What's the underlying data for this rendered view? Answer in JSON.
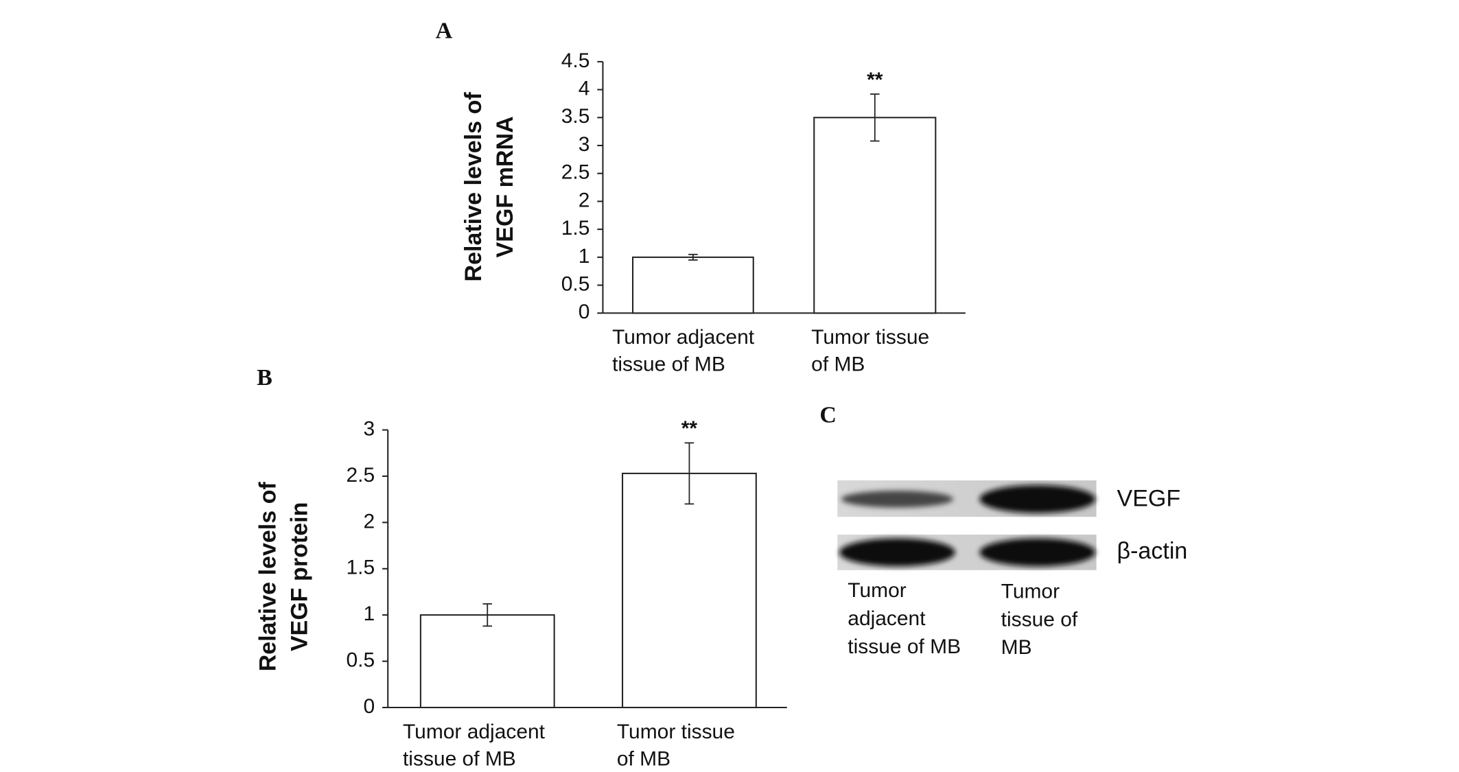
{
  "panels": [
    "A",
    "B",
    "C"
  ],
  "chart_data": [
    {
      "type": "bar",
      "ylabel": [
        "Relative levels of",
        "VEGF mRNA"
      ],
      "categories": [
        "Tumor adjacent tissue of MB",
        "Tumor tissue of MB"
      ],
      "values": [
        1.0,
        3.5
      ],
      "errors": [
        0.05,
        0.42
      ],
      "annotation": "**",
      "color": "#ffffff",
      "ylim": [
        0,
        4.5
      ],
      "yticks": [
        0,
        0.5,
        1,
        1.5,
        2,
        2.5,
        3,
        3.5,
        4,
        4.5
      ]
    },
    {
      "type": "bar",
      "ylabel": [
        "Relative levels of",
        "VEGF protein"
      ],
      "categories": [
        "Tumor adjacent tissue of MB",
        "Tumor tissue of MB"
      ],
      "values": [
        1.0,
        2.53
      ],
      "errors": [
        0.12,
        0.33
      ],
      "annotation": "**",
      "color": "#ffffff",
      "ylim": [
        0,
        3
      ],
      "yticks": [
        0,
        0.5,
        1,
        1.5,
        2,
        2.5,
        3
      ]
    }
  ],
  "blot": {
    "rows": [
      "VEGF",
      "β-actin"
    ],
    "lanes": [
      "Tumor adjacent tissue of MB",
      "Tumor tissue of MB"
    ]
  }
}
